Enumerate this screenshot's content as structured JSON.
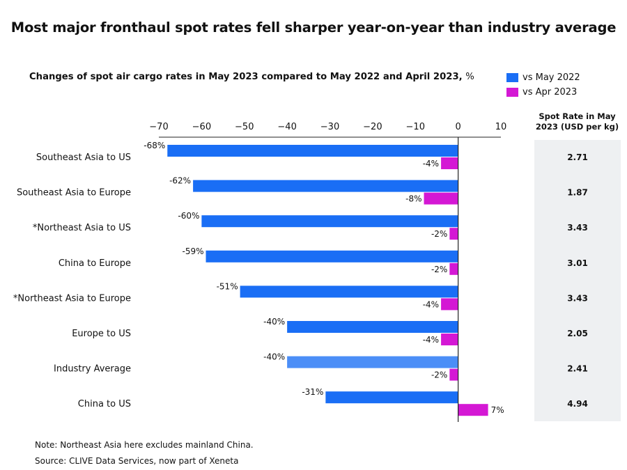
{
  "title": "Most major fronthaul spot rates fell sharper year-on-year than industry average",
  "subtitle": "Changes of spot air cargo rates in May 2023 compared to May 2022 and April 2023,",
  "subtitle_unit": "%",
  "legend": [
    {
      "label": "vs May 2022",
      "color": "#1a6ef5"
    },
    {
      "label": "vs Apr 2023",
      "color": "#d418d4"
    }
  ],
  "panel_title_line1": "Spot Rate in May",
  "panel_title_line2": "2023 (USD per kg)",
  "notes": {
    "note": "Note: Northeast Asia here excludes mainland China.",
    "source": "Source: CLIVE Data Services, now part of Xeneta"
  },
  "colors": {
    "vs_may_2022": "#1a6ef5",
    "vs_may_2022_highlight": "#4b8ef7",
    "vs_apr_2023": "#d418d4",
    "panel_bg": "#eef0f2"
  },
  "chart_data": {
    "type": "bar",
    "orientation": "horizontal",
    "categories": [
      "Southeast Asia to US",
      "Southeast Asia to Europe",
      "*Northeast Asia to US",
      "China to Europe",
      "*Northeast Asia to Europe",
      "Europe to US",
      "Industry Average",
      "China to US"
    ],
    "series": [
      {
        "name": "vs May 2022",
        "values": [
          -68,
          -62,
          -60,
          -59,
          -51,
          -40,
          -40,
          -31
        ],
        "labels": [
          "-68%",
          "-62%",
          "-60%",
          "-59%",
          "-51%",
          "-40%",
          "-40%",
          "-31%"
        ]
      },
      {
        "name": "vs Apr 2023",
        "values": [
          -4,
          -8,
          -2,
          -2,
          -4,
          -4,
          -2,
          7
        ],
        "labels": [
          "-4%",
          "-8%",
          "-2%",
          "-2%",
          "-4%",
          "-4%",
          "-2%",
          "7%"
        ]
      }
    ],
    "highlight_category": "Industry Average",
    "xlim": [
      -70,
      10
    ],
    "x_ticks": [
      -70,
      -60,
      -50,
      -40,
      -30,
      -20,
      -10,
      0,
      10
    ],
    "x_tick_labels": [
      "−70",
      "−60",
      "−50",
      "−40",
      "−30",
      "−20",
      "−10",
      "0",
      "10"
    ],
    "x_axis_position": "top",
    "grid": false,
    "legend_position": "top-right",
    "spot_rates": [
      "2.71",
      "1.87",
      "3.43",
      "3.01",
      "3.43",
      "2.05",
      "2.41",
      "4.94"
    ]
  }
}
